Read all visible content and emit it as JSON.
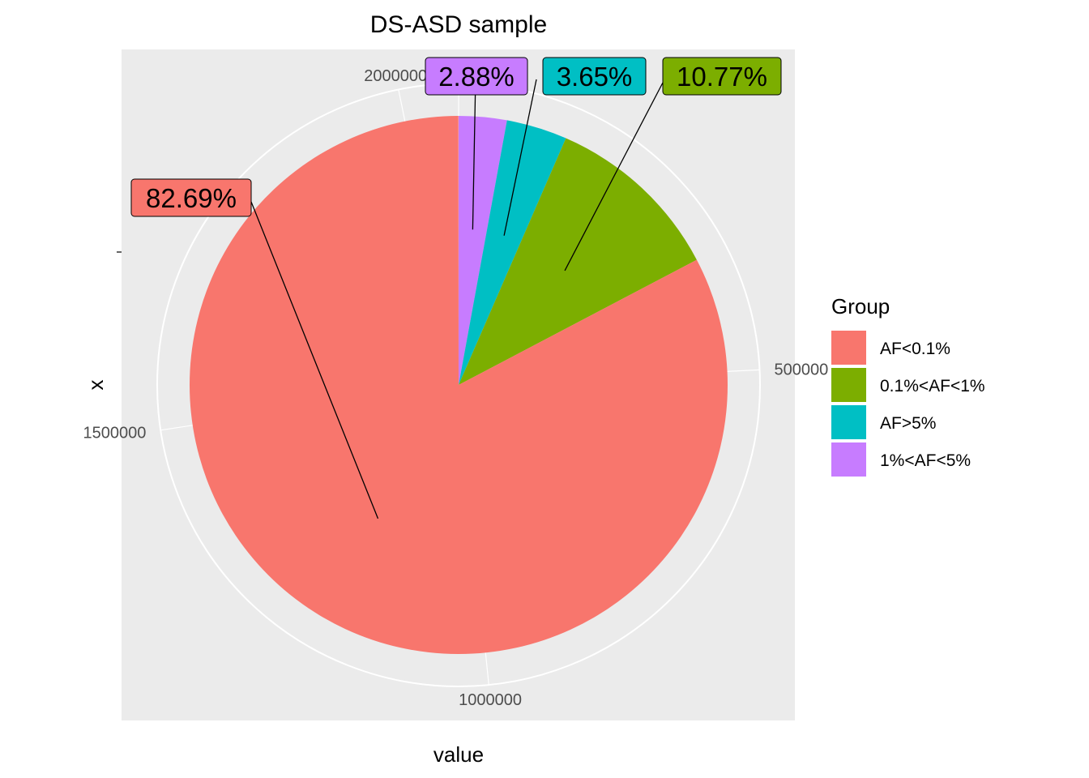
{
  "chart_data": {
    "type": "pie",
    "title": "DS-ASD sample",
    "xlabel": "value",
    "ylabel": "x",
    "total": 2066000,
    "slices": [
      {
        "name": "1%<AF<5%",
        "percent": 2.88,
        "label": "2.88%",
        "color": "#C77CFF"
      },
      {
        "name": "AF>5%",
        "percent": 3.65,
        "label": "3.65%",
        "color": "#00BFC4"
      },
      {
        "name": "0.1%<AF<1%",
        "percent": 10.77,
        "label": "10.77%",
        "color": "#7CAE00"
      },
      {
        "name": "AF<0.1%",
        "percent": 82.69,
        "label": "82.69%",
        "color": "#F8766D"
      }
    ],
    "angle_ticks": [
      {
        "value": 0,
        "label": "0"
      },
      {
        "value": 500000,
        "label": "500000"
      },
      {
        "value": 1000000,
        "label": "1000000"
      },
      {
        "value": 1500000,
        "label": "1500000"
      },
      {
        "value": 2000000,
        "label": "2000000"
      }
    ],
    "legend": {
      "title": "Group",
      "position": "right",
      "items": [
        {
          "label": "AF<0.1%",
          "color": "#F8766D"
        },
        {
          "label": "0.1%<AF<1%",
          "color": "#7CAE00"
        },
        {
          "label": "AF>5%",
          "color": "#00BFC4"
        },
        {
          "label": "1%<AF<5%",
          "color": "#C77CFF"
        }
      ]
    },
    "panel_background": "#EBEBEB",
    "grid": true
  }
}
